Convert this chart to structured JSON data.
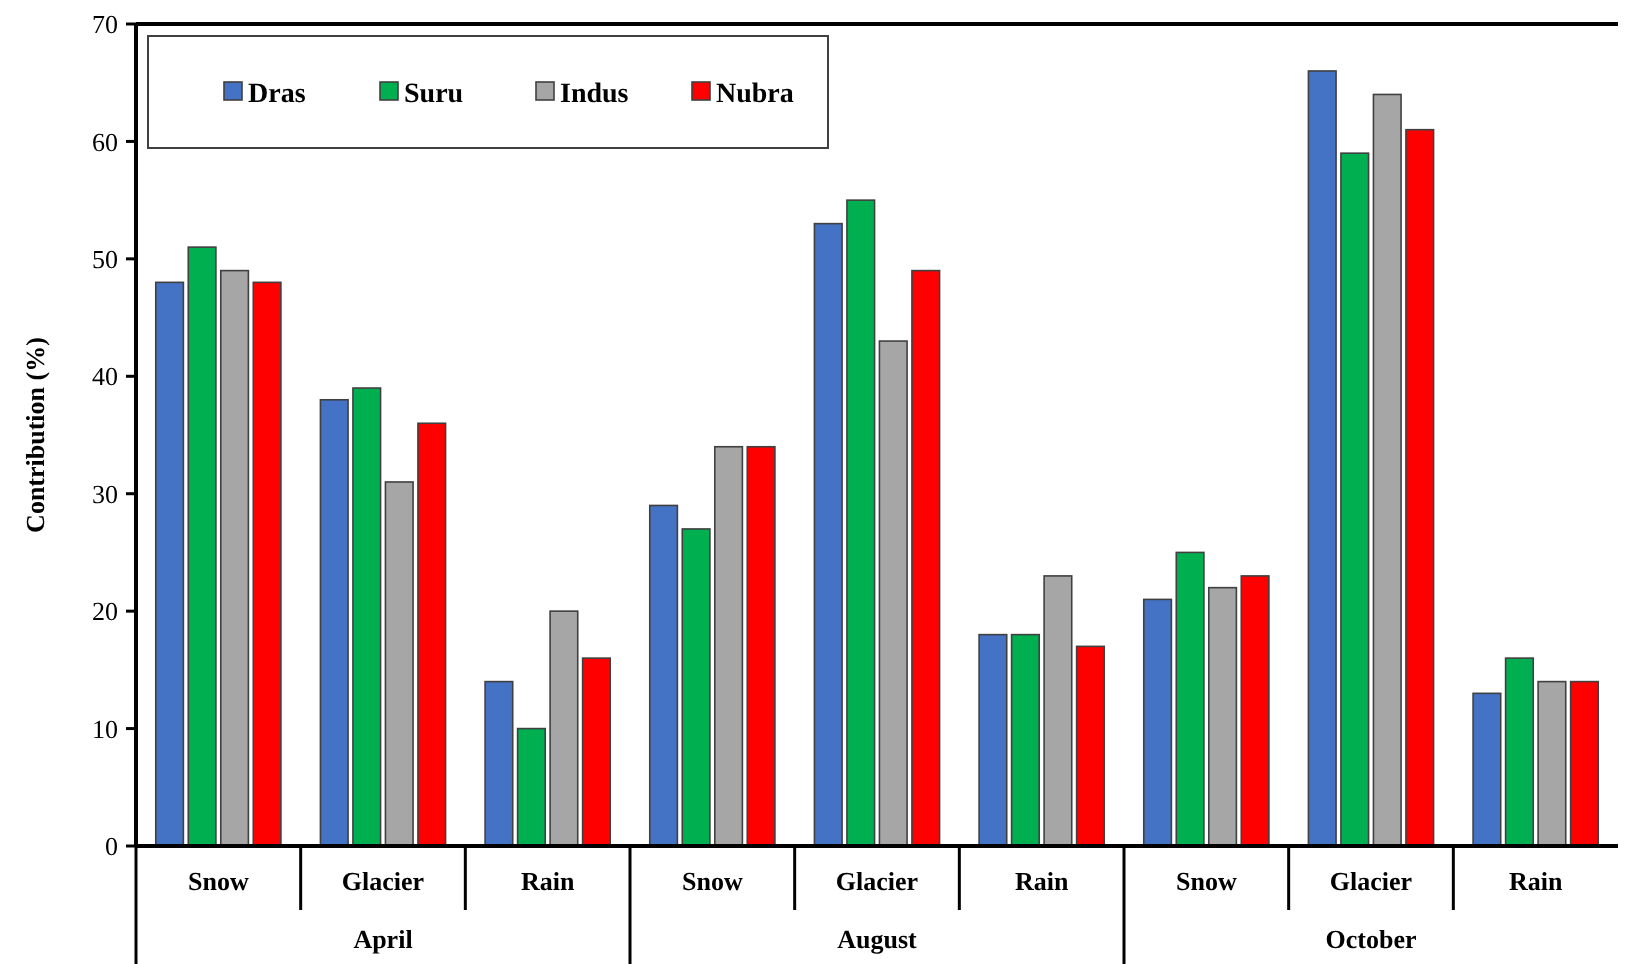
{
  "chart_data": {
    "type": "bar",
    "ylabel": "Contribution (%)",
    "categories": [
      "Snow",
      "Glacier",
      "Rain",
      "Snow",
      "Glacier",
      "Rain",
      "Snow",
      "Glacier",
      "Rain"
    ],
    "series": [
      {
        "name": "Dras",
        "color": "#4472c4",
        "values": [
          48,
          38,
          14,
          29,
          53,
          18,
          21,
          66,
          13
        ]
      },
      {
        "name": "Suru",
        "color": "#00b050",
        "values": [
          51,
          39,
          10,
          27,
          55,
          18,
          25,
          59,
          16
        ]
      },
      {
        "name": "Indus",
        "color": "#a6a6a6",
        "values": [
          49,
          31,
          20,
          34,
          43,
          23,
          22,
          64,
          14
        ]
      },
      {
        "name": "Nubra",
        "color": "#ff0000",
        "values": [
          48,
          36,
          16,
          34,
          49,
          17,
          23,
          61,
          14
        ]
      }
    ],
    "annotations": [
      "April",
      "August",
      "October"
    ],
    "ylim": [
      0,
      70
    ],
    "yticks": [
      0,
      10,
      20,
      30,
      40,
      50,
      60,
      70
    ],
    "grid": false,
    "legend": "top left"
  }
}
